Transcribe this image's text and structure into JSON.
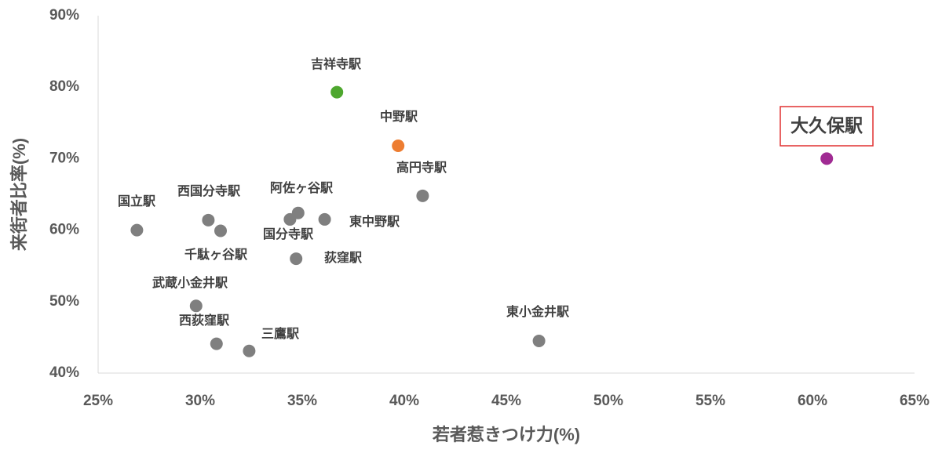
{
  "chart_data": {
    "type": "scatter",
    "x_label": "若者惹きつけ力(%)",
    "y_label": "来街者比率(%)",
    "labels": [
      "吉祥寺駅",
      "中野駅",
      "大久保駅",
      "高円寺駅",
      "国立駅",
      "西国分寺駅",
      "千駄ヶ谷駅",
      "阿佐ヶ谷駅",
      "国分寺駅",
      "東中野駅",
      "荻窪駅",
      "武蔵小金井駅",
      "西荻窪駅",
      "三鷹駅",
      "東小金井駅"
    ],
    "x": [
      36.7,
      39.7,
      60.7,
      40.9,
      26.9,
      30.4,
      31.0,
      34.8,
      34.4,
      36.1,
      34.7,
      29.8,
      30.8,
      32.4,
      46.6
    ],
    "values": [
      79.3,
      71.8,
      70.0,
      64.8,
      60.0,
      61.4,
      59.9,
      62.4,
      61.5,
      61.5,
      56.0,
      49.4,
      44.1,
      43.1,
      44.5
    ],
    "colors": [
      "#4ea72e",
      "#ed7d31",
      "#a02b93",
      "#7f7f7f",
      "#7f7f7f",
      "#7f7f7f",
      "#7f7f7f",
      "#7f7f7f",
      "#7f7f7f",
      "#7f7f7f",
      "#7f7f7f",
      "#7f7f7f",
      "#7f7f7f",
      "#7f7f7f",
      "#7f7f7f"
    ],
    "xlim": [
      25,
      65
    ],
    "xticks": [
      {
        "value": 25,
        "label": "25%"
      },
      {
        "value": 30,
        "label": "30%"
      },
      {
        "value": 35,
        "label": "35%"
      },
      {
        "value": 40,
        "label": "40%"
      },
      {
        "value": 45,
        "label": "45%"
      },
      {
        "value": 50,
        "label": "50%"
      },
      {
        "value": 55,
        "label": "55%"
      },
      {
        "value": 60,
        "label": "60%"
      },
      {
        "value": 65,
        "label": "65%"
      }
    ],
    "ylim": [
      40,
      90
    ],
    "yticks": [
      {
        "value": 40,
        "label": "40%"
      },
      {
        "value": 50,
        "label": "50%"
      },
      {
        "value": 60,
        "label": "60%"
      },
      {
        "value": 70,
        "label": "70%"
      },
      {
        "value": 80,
        "label": "80%"
      },
      {
        "value": 90,
        "label": "90%"
      }
    ]
  }
}
